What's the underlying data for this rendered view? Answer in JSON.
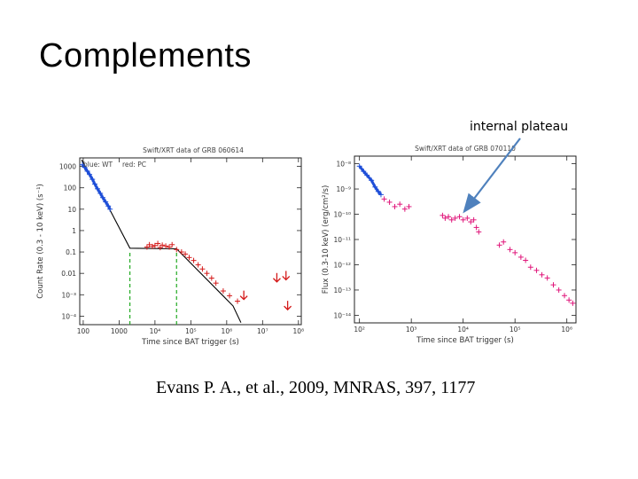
{
  "slide": {
    "title": "Complements",
    "annotation": "internal plateau",
    "citation": "Evans P. A., et al., 2009, MNRAS, 397, 1177"
  },
  "chart_data": [
    {
      "type": "scatter",
      "title": "Swift/XRT data of GRB 060614",
      "legend": [
        "blue: WT",
        "red: PC"
      ],
      "xlabel": "Time since BAT trigger (s)",
      "ylabel": "Count Rate (0.3 - 10 keV) (s⁻¹)",
      "xscale": "log",
      "yscale": "log",
      "xlim": [
        80,
        120000000.0
      ],
      "ylim": [
        4e-05,
        2500
      ],
      "xticks": [
        {
          "v": 100,
          "label": "100"
        },
        {
          "v": 1000,
          "label": "1000"
        },
        {
          "v": 10000.0,
          "label": "10⁴"
        },
        {
          "v": 100000.0,
          "label": "10⁵"
        },
        {
          "v": 1000000.0,
          "label": "10⁶"
        },
        {
          "v": 10000000.0,
          "label": "10⁷"
        },
        {
          "v": 100000000.0,
          "label": "10⁸"
        }
      ],
      "yticks": [
        {
          "v": 1000,
          "label": "1000"
        },
        {
          "v": 100,
          "label": "100"
        },
        {
          "v": 10,
          "label": "10"
        },
        {
          "v": 1,
          "label": "1"
        },
        {
          "v": 0.1,
          "label": "0.1"
        },
        {
          "v": 0.01,
          "label": "0.01"
        },
        {
          "v": 0.001,
          "label": "10⁻³"
        },
        {
          "v": 0.0001,
          "label": "10⁻⁴"
        }
      ],
      "colors": {
        "WT": "#1f4fd8",
        "PC": "#d41a1a",
        "model": "#000000",
        "breaks": "#22aa22"
      },
      "series": [
        {
          "name": "WT",
          "color": "#1f4fd8",
          "points": [
            [
              95,
              1200
            ],
            [
              110,
              900
            ],
            [
              130,
              600
            ],
            [
              150,
              420
            ],
            [
              180,
              250
            ],
            [
              210,
              150
            ],
            [
              250,
              90
            ],
            [
              300,
              55
            ],
            [
              350,
              35
            ],
            [
              420,
              22
            ],
            [
              500,
              14
            ],
            [
              560,
              10
            ]
          ]
        },
        {
          "name": "PC",
          "color": "#d41a1a",
          "points": [
            [
              6000,
              0.17
            ],
            [
              7000,
              0.22
            ],
            [
              8500,
              0.18
            ],
            [
              10000,
              0.2
            ],
            [
              12000,
              0.25
            ],
            [
              14000,
              0.16
            ],
            [
              16000,
              0.21
            ],
            [
              20000,
              0.19
            ],
            [
              25000,
              0.17
            ],
            [
              30000,
              0.22
            ],
            [
              40000,
              0.13
            ],
            [
              55000,
              0.1
            ],
            [
              70000,
              0.08
            ],
            [
              90000,
              0.055
            ],
            [
              120000,
              0.04
            ],
            [
              160000,
              0.025
            ],
            [
              210000,
              0.016
            ],
            [
              280000,
              0.01
            ],
            [
              380000,
              0.006
            ],
            [
              500000,
              0.0035
            ],
            [
              800000,
              0.0015
            ],
            [
              1200000,
              0.0009
            ],
            [
              2000000,
              0.0005
            ]
          ]
        },
        {
          "name": "upper limits",
          "color": "#d41a1a",
          "points": [
            [
              3000000,
              0.0006
            ],
            [
              25000000.0,
              0.004
            ],
            [
              45000000.0,
              0.005
            ],
            [
              50000000.0,
              0.0002
            ]
          ]
        }
      ],
      "model": [
        [
          90,
          2000
        ],
        [
          500,
          13
        ],
        [
          2000,
          0.15
        ],
        [
          40000,
          0.14
        ],
        [
          1500000,
          0.0003
        ],
        [
          2500000,
          5e-05
        ]
      ],
      "breaks": [
        2000,
        40000
      ]
    },
    {
      "type": "scatter",
      "title": "Swift/XRT data of GRB 070110",
      "xlabel": "Time since BAT trigger (s)",
      "ylabel": "Flux (0.3-10 keV) (erg/cm²/s)",
      "xscale": "log",
      "yscale": "log",
      "xlim": [
        80,
        1500000.0
      ],
      "ylim": [
        5e-15,
        2e-08
      ],
      "xticks": [
        {
          "v": 100,
          "label": "10²"
        },
        {
          "v": 1000,
          "label": "10³"
        },
        {
          "v": 10000.0,
          "label": "10⁴"
        },
        {
          "v": 100000.0,
          "label": "10⁵"
        },
        {
          "v": 1000000.0,
          "label": "10⁶"
        }
      ],
      "yticks": [
        {
          "v": 1e-08,
          "label": "10⁻⁸"
        },
        {
          "v": 1e-09,
          "label": "10⁻⁹"
        },
        {
          "v": 1e-10,
          "label": "10⁻¹⁰"
        },
        {
          "v": 1e-11,
          "label": "10⁻¹¹"
        },
        {
          "v": 1e-12,
          "label": "10⁻¹²"
        },
        {
          "v": 1e-13,
          "label": "10⁻¹³"
        },
        {
          "v": 1e-14,
          "label": "10⁻¹⁴"
        }
      ],
      "colors": {
        "WT": "#1f4fd8",
        "PC": "#e0157a"
      },
      "series": [
        {
          "name": "WT",
          "color": "#1f4fd8",
          "points": [
            [
              100,
              8e-09
            ],
            [
              120,
              5e-09
            ],
            [
              140,
              3.5e-09
            ],
            [
              170,
              2.2e-09
            ],
            [
              200,
              1.2e-09
            ],
            [
              230,
              8e-10
            ],
            [
              260,
              6e-10
            ]
          ]
        },
        {
          "name": "PC",
          "color": "#e0157a",
          "points": [
            [
              300,
              4e-10
            ],
            [
              380,
              3e-10
            ],
            [
              480,
              2e-10
            ],
            [
              600,
              2.5e-10
            ],
            [
              750,
              1.6e-10
            ],
            [
              900,
              2e-10
            ],
            [
              4000,
              9e-11
            ],
            [
              4500,
              7e-11
            ],
            [
              5200,
              8e-11
            ],
            [
              6000,
              6e-11
            ],
            [
              7000,
              7e-11
            ],
            [
              8500,
              8e-11
            ],
            [
              10000,
              6e-11
            ],
            [
              12000,
              7e-11
            ],
            [
              14000,
              5e-11
            ],
            [
              16000,
              6e-11
            ],
            [
              18000,
              3e-11
            ],
            [
              20000,
              2e-11
            ],
            [
              50000,
              6e-12
            ],
            [
              60000,
              8e-12
            ],
            [
              80000,
              4e-12
            ],
            [
              100000,
              3e-12
            ],
            [
              130000,
              2e-12
            ],
            [
              160000,
              1.5e-12
            ],
            [
              200000,
              8e-13
            ],
            [
              260000,
              6e-13
            ],
            [
              330000,
              4e-13
            ],
            [
              420000,
              3e-13
            ],
            [
              550000,
              1.6e-13
            ],
            [
              700000,
              1e-13
            ],
            [
              900000,
              6e-14
            ],
            [
              1100000,
              4e-14
            ],
            [
              1300000,
              3e-14
            ]
          ]
        }
      ]
    }
  ]
}
